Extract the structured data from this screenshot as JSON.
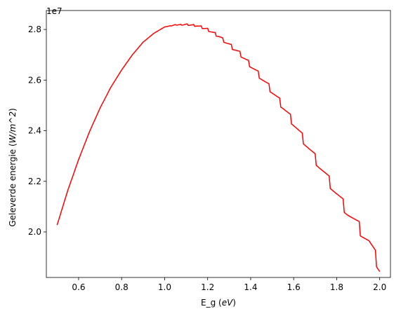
{
  "chart_data": {
    "type": "line",
    "title": "",
    "xlabel": "E_g (eV)",
    "ylabel": "Geleverde energie (W/m^2)",
    "offset_label": "1e7",
    "xlim": [
      0.45,
      2.05
    ],
    "ylim": [
      18200000.0,
      28750000.0
    ],
    "grid": false,
    "x_ticks": [
      0.6,
      0.8,
      1.0,
      1.2,
      1.4,
      1.6,
      1.8,
      2.0
    ],
    "x_tick_labels": [
      "0.6",
      "0.8",
      "1.0",
      "1.2",
      "1.4",
      "1.6",
      "1.8",
      "2.0"
    ],
    "y_ticks": [
      20000000.0,
      22000000.0,
      24000000.0,
      26000000.0,
      28000000.0
    ],
    "y_tick_labels": [
      "2.0",
      "2.2",
      "2.4",
      "2.6",
      "2.8"
    ],
    "series": [
      {
        "name": "",
        "color": "#ff0000",
        "x": [
          0.5,
          0.55,
          0.6,
          0.65,
          0.7,
          0.75,
          0.8,
          0.85,
          0.9,
          0.95,
          1.0,
          1.05,
          1.1,
          1.15,
          1.2,
          1.25,
          1.3,
          1.35,
          1.4,
          1.45,
          1.5,
          1.55,
          1.6,
          1.65,
          1.7,
          1.75,
          1.8,
          1.85,
          1.9,
          1.95,
          2.0
        ],
        "y": [
          20270000.0,
          21650000.0,
          22860000.0,
          23950000.0,
          24900000.0,
          25720000.0,
          26400000.0,
          27000000.0,
          27500000.0,
          27850000.0,
          28100000.0,
          28180000.0,
          28200000.0,
          28150000.0,
          28000000.0,
          27750000.0,
          27400000.0,
          27050000.0,
          26600000.0,
          26100000.0,
          25550000.0,
          24950000.0,
          24300000.0,
          23600000.0,
          22900000.0,
          22200000.0,
          21500000.0,
          20800000.0,
          20200000.0,
          19600000.0,
          18600000.0
        ]
      }
    ]
  }
}
